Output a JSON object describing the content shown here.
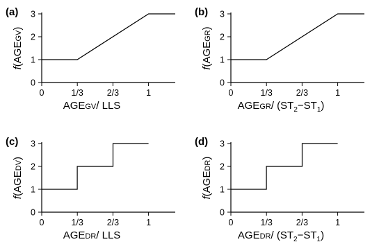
{
  "chart_data": [
    {
      "type": "line",
      "panel_label": "(a)",
      "ylabel": {
        "func": "f",
        "prefix": "(AGE",
        "sub": "GV",
        "suffix": ")"
      },
      "xlabel": {
        "prefix": "AGE",
        "sub": "GV",
        "suffix": "/ LLS"
      },
      "xticks": [
        "0",
        "1/3",
        "2/3",
        "1"
      ],
      "yticks": [
        "0",
        "1",
        "2",
        "3"
      ],
      "xlim": [
        0,
        1.25
      ],
      "ylim": [
        0,
        3
      ],
      "x": [
        0,
        0.333,
        1,
        1.25
      ],
      "y": [
        1,
        1,
        3,
        3
      ]
    },
    {
      "type": "line",
      "panel_label": "(b)",
      "ylabel": {
        "func": "f",
        "prefix": "(AGE",
        "sub": "GR",
        "suffix": ")"
      },
      "xlabel": {
        "prefix": "AGE",
        "sub": "GR",
        "suffix": "/ (ST",
        "s1": "2",
        "mid": "−ST",
        "s2": "1",
        "end": ")"
      },
      "xticks": [
        "0",
        "1/3",
        "2/3",
        "1"
      ],
      "yticks": [
        "0",
        "1",
        "2",
        "3"
      ],
      "xlim": [
        0,
        1.25
      ],
      "ylim": [
        0,
        3
      ],
      "x": [
        0,
        0.333,
        1,
        1.25
      ],
      "y": [
        1,
        1,
        3,
        3
      ]
    },
    {
      "type": "line",
      "panel_label": "(c)",
      "ylabel": {
        "func": "f",
        "prefix": "(AGE",
        "sub": "DV",
        "suffix": ")"
      },
      "xlabel": {
        "prefix": "AGE",
        "sub": "DR",
        "suffix": "/ LLS"
      },
      "xticks": [
        "0",
        "1/3",
        "2/3",
        "1"
      ],
      "yticks": [
        "0",
        "1",
        "2",
        "3"
      ],
      "xlim": [
        0,
        1.25
      ],
      "ylim": [
        0,
        3
      ],
      "x": [
        0,
        0.333,
        0.333,
        0.667,
        0.667,
        1
      ],
      "y": [
        1,
        1,
        2,
        2,
        3,
        3
      ]
    },
    {
      "type": "line",
      "panel_label": "(d)",
      "ylabel": {
        "func": "f",
        "prefix": "(AGE",
        "sub": "DR",
        "suffix": ")"
      },
      "xlabel": {
        "prefix": "AGE",
        "sub": "DR",
        "suffix": "/ (ST",
        "s1": "2",
        "mid": "−ST",
        "s2": "1",
        "end": ")"
      },
      "xticks": [
        "0",
        "1/3",
        "2/3",
        "1"
      ],
      "yticks": [
        "0",
        "1",
        "2",
        "3"
      ],
      "xlim": [
        0,
        1.25
      ],
      "ylim": [
        0,
        3
      ],
      "x": [
        0,
        0.333,
        0.333,
        0.667,
        0.667,
        1
      ],
      "y": [
        1,
        1,
        2,
        2,
        3,
        3
      ]
    }
  ]
}
